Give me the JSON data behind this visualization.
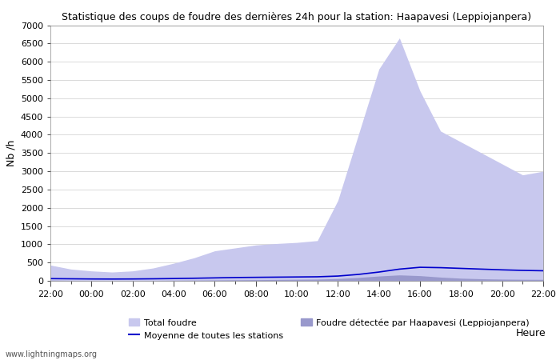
{
  "title": "Statistique des coups de foudre des dernières 24h pour la station: Haapavesi (Leppiojanpera)",
  "ylabel": "Nb /h",
  "xlabel_right": "Heure",
  "ylim": [
    0,
    7000
  ],
  "yticks": [
    0,
    500,
    1000,
    1500,
    2000,
    2500,
    3000,
    3500,
    4000,
    4500,
    5000,
    5500,
    6000,
    6500,
    7000
  ],
  "xtick_labels": [
    "22:00",
    "00:00",
    "02:00",
    "04:00",
    "06:00",
    "08:00",
    "10:00",
    "12:00",
    "14:00",
    "16:00",
    "18:00",
    "20:00",
    "22:00"
  ],
  "watermark": "www.lightningmaps.org",
  "color_total": "#c8c8ee",
  "color_detected": "#9999cc",
  "color_mean": "#0000cc",
  "color_bg": "#ffffff",
  "color_grid": "#aaaaaa",
  "legend_total": "Total foudre",
  "legend_detected": "Foudre détectée par Haapavesi (Leppiojanpera)",
  "legend_mean": "Moyenne de toutes les stations",
  "hours": [
    0,
    1,
    2,
    3,
    4,
    5,
    6,
    7,
    8,
    9,
    10,
    11,
    12,
    13,
    14,
    15,
    16,
    17,
    18,
    19,
    20,
    21,
    22,
    23,
    24
  ],
  "total_foudre": [
    430,
    320,
    270,
    240,
    270,
    350,
    480,
    630,
    820,
    900,
    980,
    1020,
    1050,
    1100,
    2200,
    4000,
    5800,
    6650,
    5200,
    4100,
    3800,
    3500,
    3200,
    2900,
    3000
  ],
  "detected": [
    18,
    12,
    8,
    6,
    8,
    10,
    14,
    18,
    22,
    26,
    30,
    35,
    40,
    45,
    60,
    90,
    130,
    160,
    140,
    100,
    70,
    55,
    45,
    40,
    38
  ],
  "mean_line": [
    60,
    55,
    50,
    48,
    50,
    55,
    62,
    70,
    80,
    90,
    95,
    100,
    105,
    110,
    130,
    175,
    240,
    320,
    370,
    360,
    340,
    320,
    300,
    285,
    275
  ]
}
